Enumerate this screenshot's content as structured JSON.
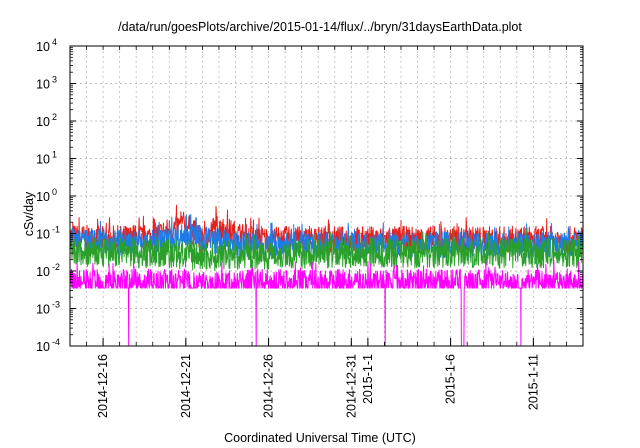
{
  "chart_data": {
    "type": "line",
    "title": "/data/run/goesPlots/archive/2015-01-14/flux/../bryn/31daysEarthData.plot",
    "xlabel": "Coordinated Universal Time (UTC)",
    "ylabel": "cSv/day",
    "yscale": "log",
    "ylim": [
      0.0001,
      10000
    ],
    "yticks": [
      {
        "value": -4,
        "label": "-4"
      },
      {
        "value": -3,
        "label": "-3"
      },
      {
        "value": -2,
        "label": "-2"
      },
      {
        "value": -1,
        "label": "-1"
      },
      {
        "value": 0,
        "label": "0"
      },
      {
        "value": 1,
        "label": "1"
      },
      {
        "value": 2,
        "label": "2"
      },
      {
        "value": 3,
        "label": "3"
      },
      {
        "value": 4,
        "label": "4"
      }
    ],
    "xlim": [
      "2014-12-14",
      "2015-01-14"
    ],
    "xticks": [
      {
        "date": "2014-12-16",
        "label": "2014-12-16"
      },
      {
        "date": "2014-12-21",
        "label": "2014-12-21"
      },
      {
        "date": "2014-12-26",
        "label": "2014-12-26"
      },
      {
        "date": "2014-12-31",
        "label": "2014-12-31"
      },
      {
        "date": "2015-01-01",
        "label": "2015-1-1"
      },
      {
        "date": "2015-01-06",
        "label": "2015-1-6"
      },
      {
        "date": "2015-01-11",
        "label": "2015-1-11"
      }
    ],
    "grid": true,
    "series": [
      {
        "color": "#e8201c",
        "values": [
          [
            0,
            0.08
          ],
          [
            2,
            0.07
          ],
          [
            5,
            0.08
          ],
          [
            7,
            0.18
          ],
          [
            8,
            0.06
          ],
          [
            8.8,
            0.15
          ],
          [
            11,
            0.07
          ],
          [
            15,
            0.07
          ],
          [
            20,
            0.07
          ],
          [
            25,
            0.07
          ],
          [
            31,
            0.07
          ]
        ]
      },
      {
        "color": "#1e7be8",
        "values": [
          [
            0,
            0.06
          ],
          [
            5,
            0.055
          ],
          [
            7,
            0.09
          ],
          [
            10,
            0.05
          ],
          [
            15,
            0.05
          ],
          [
            20,
            0.05
          ],
          [
            25,
            0.05
          ],
          [
            31,
            0.05
          ]
        ]
      },
      {
        "color": "#2aa02a",
        "values": [
          [
            0,
            0.03
          ],
          [
            5,
            0.03
          ],
          [
            8,
            0.025
          ],
          [
            15,
            0.03
          ],
          [
            25,
            0.03
          ],
          [
            31,
            0.03
          ]
        ]
      },
      {
        "color": "#ff00ff",
        "values": [
          [
            0,
            0.005
          ],
          [
            3.5,
            0.005
          ],
          [
            3.55,
            0.0001
          ],
          [
            3.6,
            0.005
          ],
          [
            7,
            0.005
          ],
          [
            7.5,
            0.004
          ],
          [
            11.2,
            0.005
          ],
          [
            11.25,
            0.0001
          ],
          [
            11.3,
            0.005
          ],
          [
            19,
            0.005
          ],
          [
            19.05,
            0.0001
          ],
          [
            19.1,
            0.005
          ],
          [
            23.6,
            0.005
          ],
          [
            23.65,
            0.0001
          ],
          [
            23.8,
            0.0001
          ],
          [
            23.85,
            0.005
          ],
          [
            27.2,
            0.005
          ],
          [
            27.25,
            0.0001
          ],
          [
            27.3,
            0.005
          ],
          [
            31,
            0.005
          ]
        ]
      }
    ]
  }
}
